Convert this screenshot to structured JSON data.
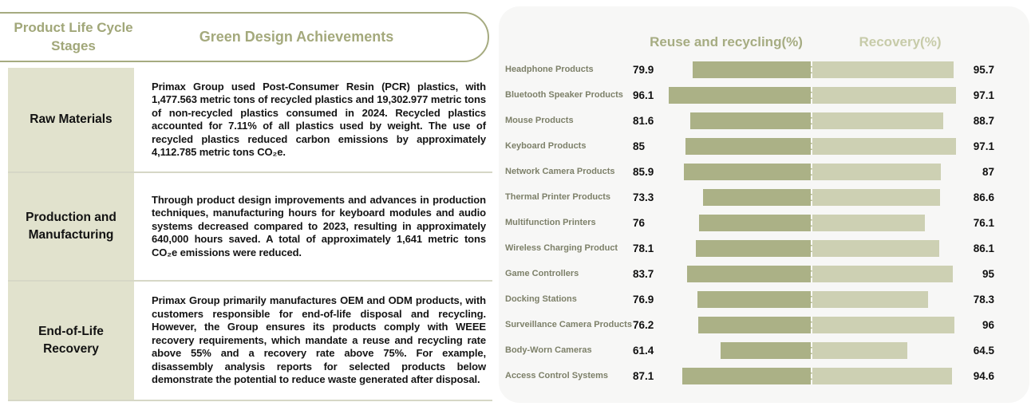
{
  "table": {
    "header": {
      "stages_col": "Product Life Cycle Stages",
      "achievements_col": "Green Design Achievements"
    },
    "rows": [
      {
        "stage": "Raw Materials",
        "achievement": "Primax Group used Post-Consumer Resin (PCR) plastics, with 1,477.563 metric tons of recycled plastics and 19,302.977 metric tons of non-recycled plastics consumed in 2024. Recycled plastics accounted for 7.11% of all plastics used by weight. The use of recycled plastics reduced carbon emissions by approximately 4,112.785 metric tons CO₂e."
      },
      {
        "stage": "Production and Manufacturing",
        "achievement": "Through product design improvements and advances in production techniques, manufacturing hours for keyboard modules and audio systems decreased compared to 2023, resulting in approximately 640,000 hours saved. A total of approximately 1,641 metric tons CO₂e emissions were reduced."
      },
      {
        "stage": "End-of-Life Recovery",
        "achievement": "Primax Group primarily manufactures OEM and ODM products, with customers responsible for end-of-life disposal and recycling. However, the Group ensures its products comply with WEEE recovery requirements, which mandate a reuse and recycling rate above 55% and a recovery rate above 75%. For example, disassembly analysis reports for selected products below demonstrate the potential to reduce waste generated after disposal."
      }
    ]
  },
  "chart_data": {
    "type": "bar",
    "variant": "diverging-horizontal",
    "title": "",
    "xlim": [
      0,
      100
    ],
    "legend_position": "top",
    "grid": false,
    "categories": [
      "Headphone Products",
      "Bluetooth Speaker Products",
      "Mouse Products",
      "Keyboard Products",
      "Network Camera Products",
      "Thermal Printer Products",
      "Multifunction Printers",
      "Wireless Charging Product",
      "Game Controllers",
      "Docking Stations",
      "Surveillance Camera Products",
      "Body-Worn Cameras",
      "Access Control Systems"
    ],
    "series": [
      {
        "name": "Reuse and recycling(%)",
        "values": [
          79.9,
          96.1,
          81.6,
          85,
          85.9,
          73.3,
          76,
          78.1,
          83.7,
          76.9,
          76.2,
          61.4,
          87.1
        ]
      },
      {
        "name": "Recovery(%)",
        "values": [
          95.7,
          97.1,
          88.7,
          97.1,
          87,
          86.6,
          76.1,
          86.1,
          95,
          78.3,
          96,
          64.5,
          94.6
        ]
      }
    ],
    "colors": {
      "reuse_bar": "#abb186",
      "recovery_bar": "#cdd0b3",
      "panel_bg": "#f7f7f6",
      "category_label": "#7d8069",
      "header_reuse": "#a6ac82",
      "header_recovery": "#c7cba9",
      "table_stage_bg": "#e1e2cd",
      "pill_border": "#a6ab80"
    }
  }
}
